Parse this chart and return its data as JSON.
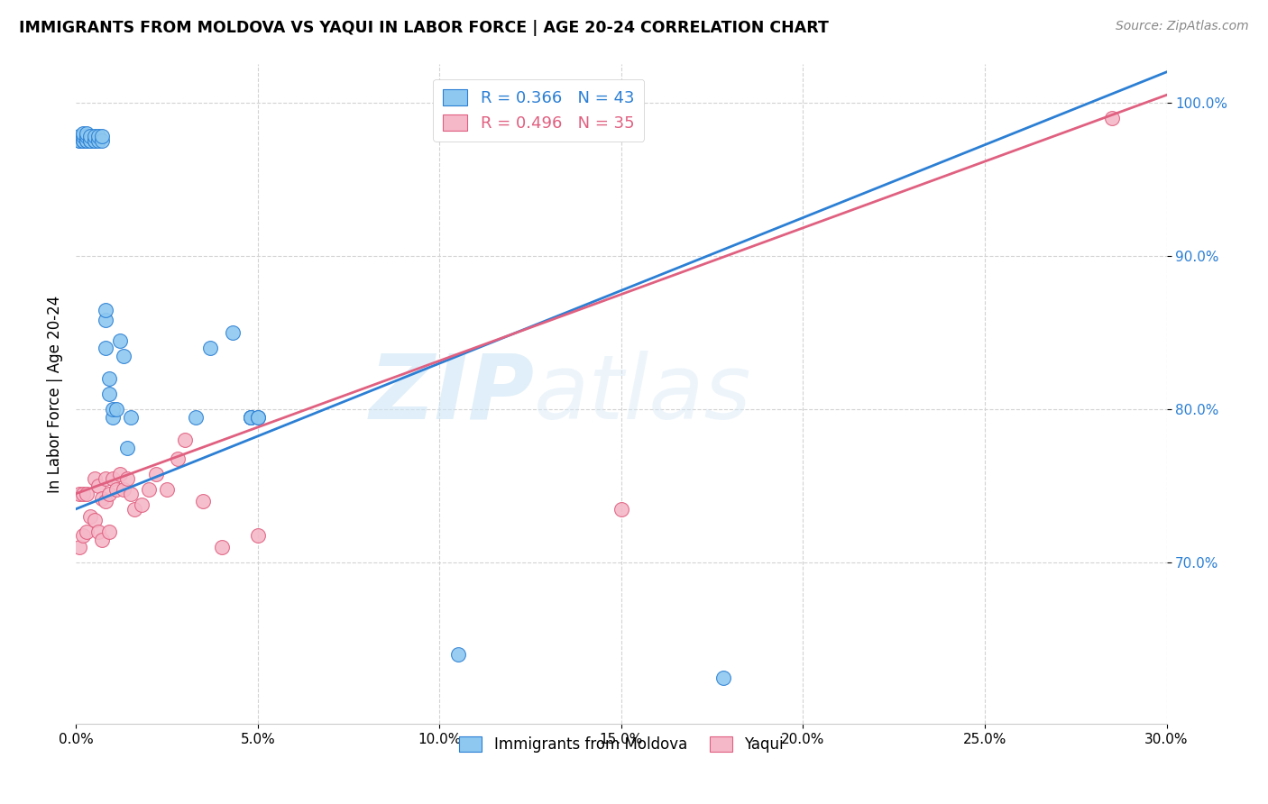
{
  "title": "IMMIGRANTS FROM MOLDOVA VS YAQUI IN LABOR FORCE | AGE 20-24 CORRELATION CHART",
  "source": "Source: ZipAtlas.com",
  "ylabel": "In Labor Force | Age 20-24",
  "xlim": [
    0.0,
    0.3
  ],
  "ylim": [
    0.595,
    1.025
  ],
  "xticks": [
    0.0,
    0.05,
    0.1,
    0.15,
    0.2,
    0.25,
    0.3
  ],
  "xtick_labels": [
    "0.0%",
    "5.0%",
    "10.0%",
    "15.0%",
    "20.0%",
    "25.0%",
    "30.0%"
  ],
  "yticks": [
    0.7,
    0.8,
    0.9,
    1.0
  ],
  "ytick_labels": [
    "70.0%",
    "80.0%",
    "90.0%",
    "100.0%"
  ],
  "color_blue": "#8ec8f0",
  "color_pink": "#f5b8c8",
  "line_blue": "#2b7fd4",
  "line_pink": "#e06080",
  "legend_label1": "Immigrants from Moldova",
  "legend_label2": "Yaqui",
  "watermark_zip": "ZIP",
  "watermark_atlas": "atlas",
  "blue_line_x0": 0.0,
  "blue_line_y0": 0.735,
  "blue_line_x1": 0.3,
  "blue_line_y1": 1.02,
  "pink_line_x0": 0.0,
  "pink_line_y0": 0.745,
  "pink_line_x1": 0.3,
  "pink_line_y1": 1.005,
  "blue_x": [
    0.001,
    0.001,
    0.001,
    0.002,
    0.002,
    0.002,
    0.002,
    0.003,
    0.003,
    0.003,
    0.003,
    0.004,
    0.004,
    0.004,
    0.005,
    0.005,
    0.005,
    0.006,
    0.006,
    0.007,
    0.007,
    0.008,
    0.008,
    0.008,
    0.009,
    0.009,
    0.01,
    0.01,
    0.011,
    0.012,
    0.013,
    0.014,
    0.015,
    0.033,
    0.037,
    0.043,
    0.048,
    0.048,
    0.048,
    0.05,
    0.05,
    0.105,
    0.178
  ],
  "blue_y": [
    0.975,
    0.975,
    0.978,
    0.975,
    0.975,
    0.978,
    0.98,
    0.975,
    0.975,
    0.978,
    0.98,
    0.975,
    0.975,
    0.978,
    0.975,
    0.975,
    0.978,
    0.975,
    0.978,
    0.975,
    0.978,
    0.84,
    0.858,
    0.865,
    0.82,
    0.81,
    0.795,
    0.8,
    0.8,
    0.845,
    0.835,
    0.775,
    0.795,
    0.795,
    0.84,
    0.85,
    0.795,
    0.795,
    0.795,
    0.795,
    0.795,
    0.64,
    0.625
  ],
  "pink_x": [
    0.001,
    0.001,
    0.002,
    0.002,
    0.003,
    0.003,
    0.004,
    0.005,
    0.005,
    0.006,
    0.006,
    0.007,
    0.007,
    0.008,
    0.008,
    0.009,
    0.009,
    0.01,
    0.011,
    0.012,
    0.013,
    0.014,
    0.015,
    0.016,
    0.018,
    0.02,
    0.022,
    0.025,
    0.028,
    0.03,
    0.035,
    0.04,
    0.05,
    0.15,
    0.285
  ],
  "pink_y": [
    0.745,
    0.71,
    0.745,
    0.718,
    0.745,
    0.72,
    0.73,
    0.755,
    0.728,
    0.75,
    0.72,
    0.742,
    0.715,
    0.755,
    0.74,
    0.745,
    0.72,
    0.755,
    0.748,
    0.758,
    0.748,
    0.755,
    0.745,
    0.735,
    0.738,
    0.748,
    0.758,
    0.748,
    0.768,
    0.78,
    0.74,
    0.71,
    0.718,
    0.735,
    0.99
  ]
}
